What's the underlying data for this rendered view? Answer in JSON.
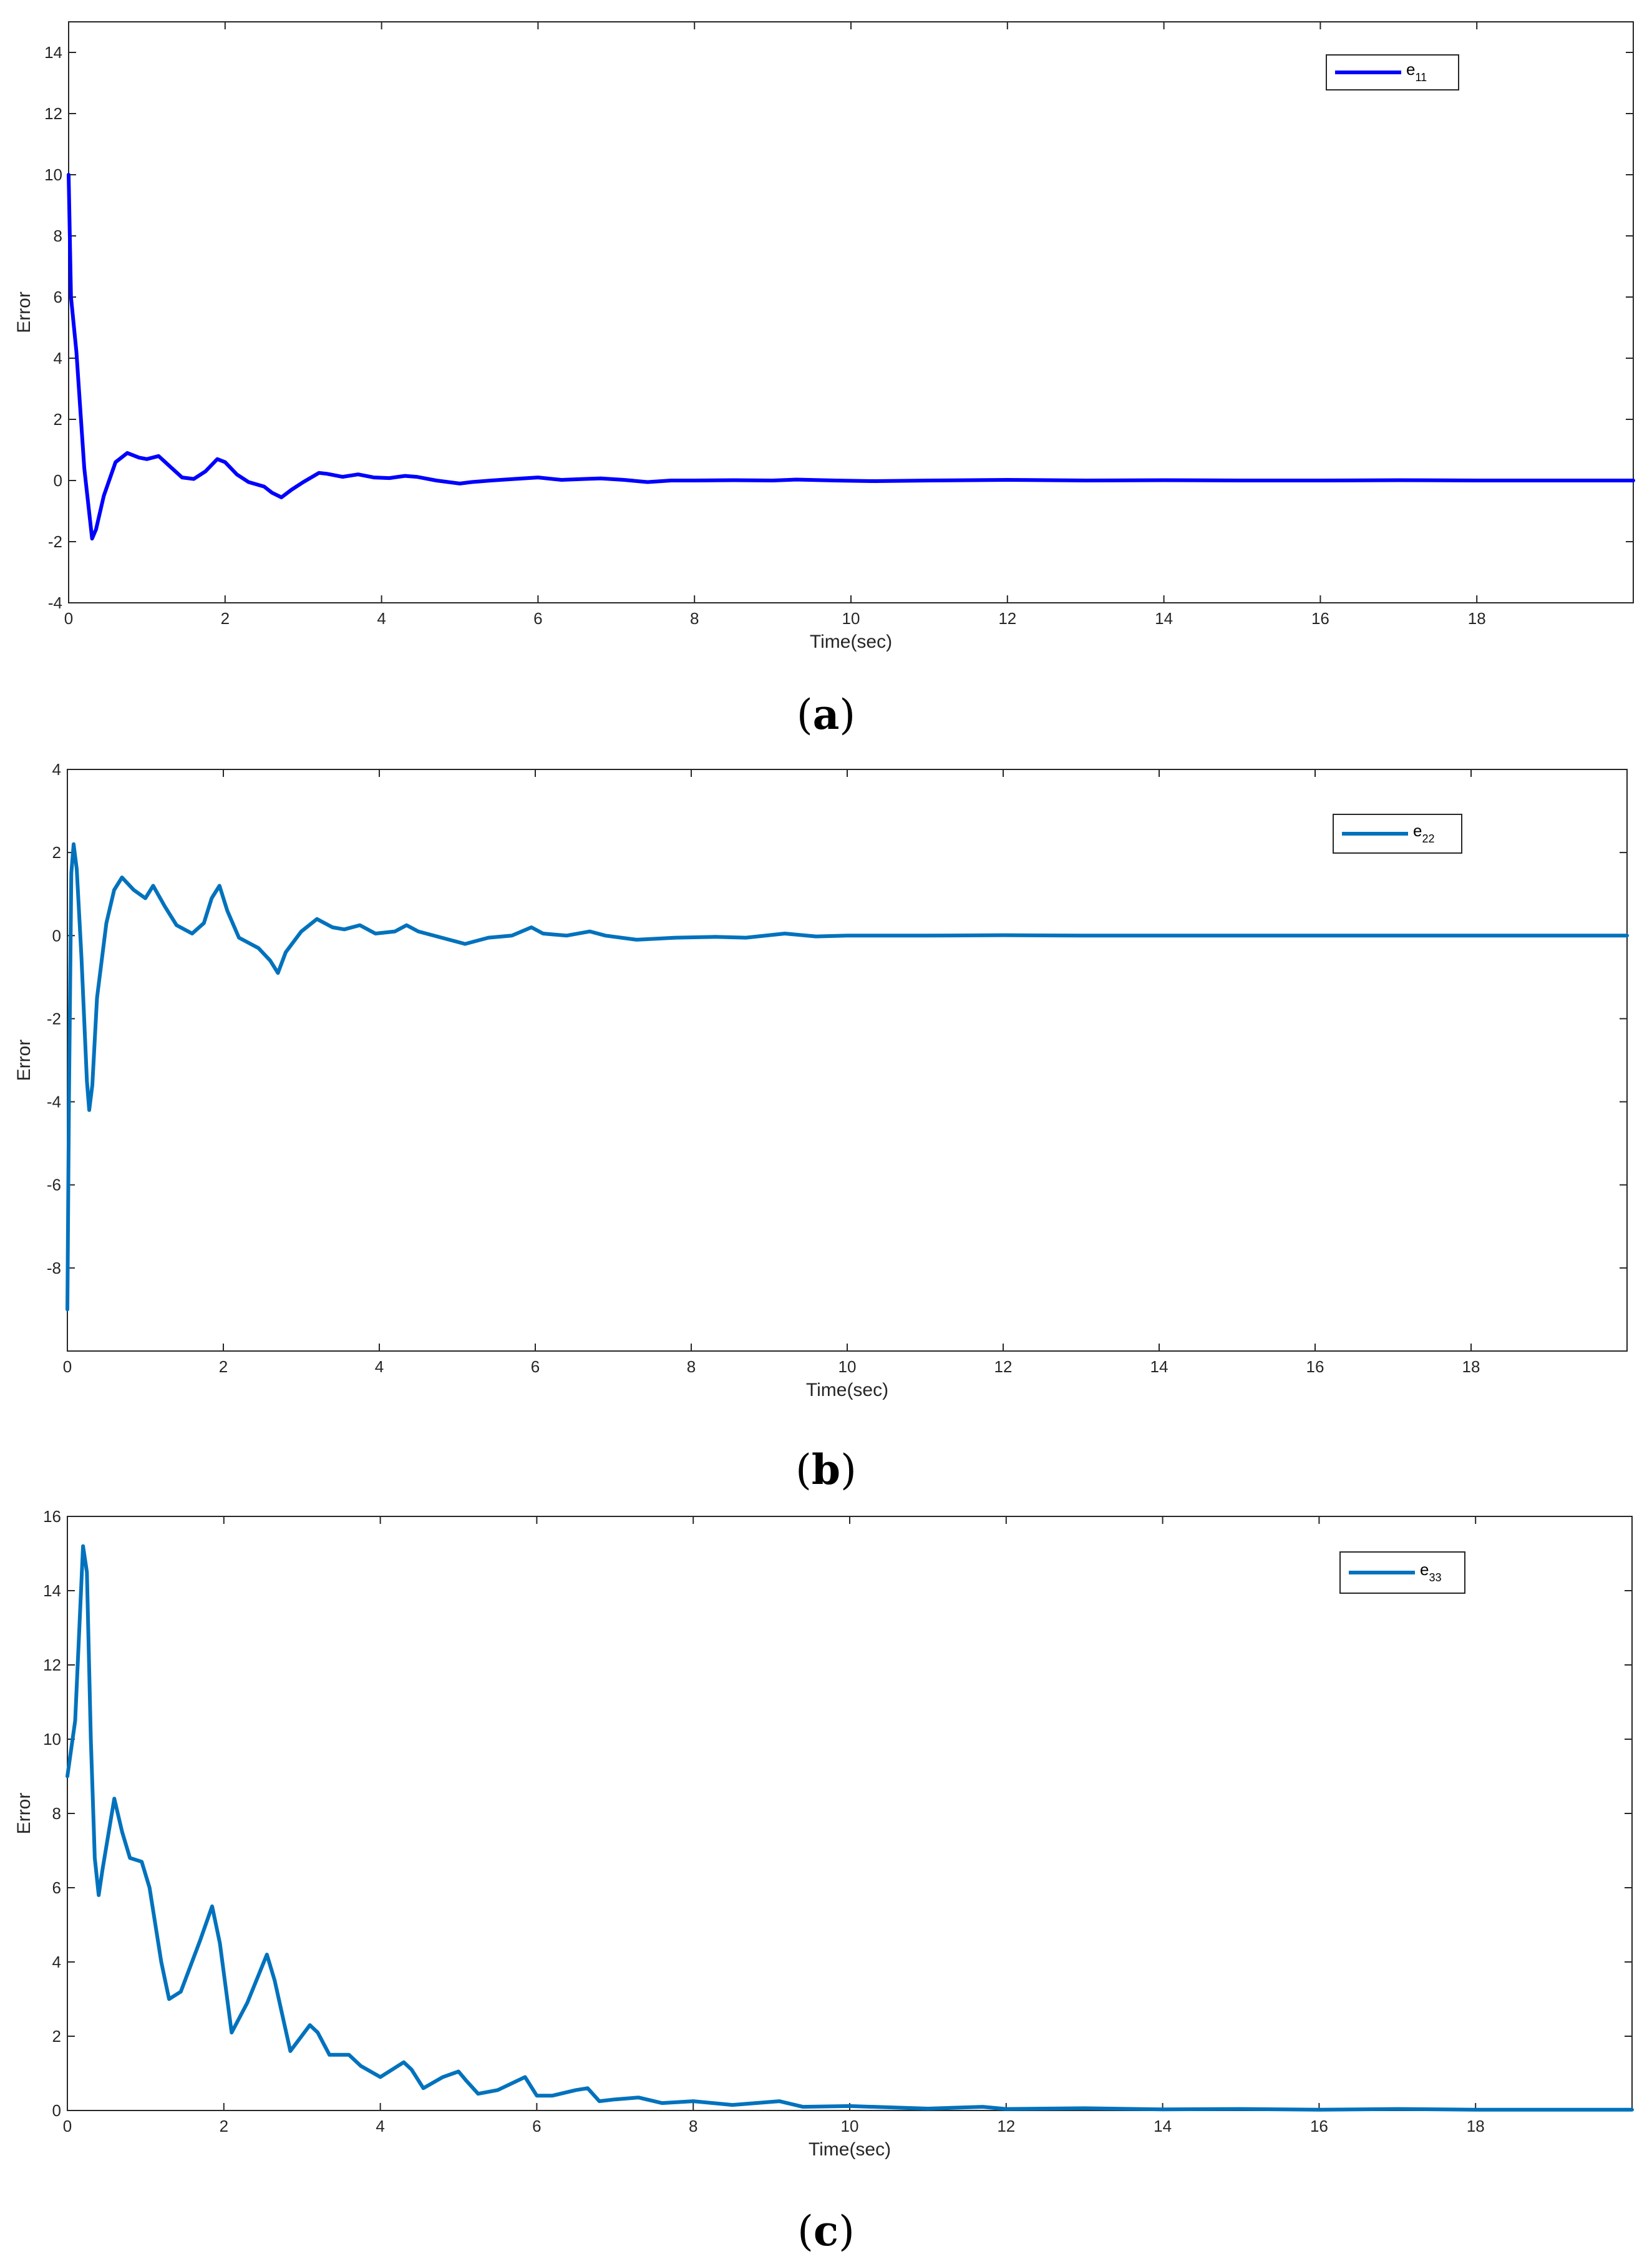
{
  "figure": {
    "captions": [
      {
        "open": "(",
        "letter": "a",
        "close": ")"
      },
      {
        "open": "(",
        "letter": "b",
        "close": ")"
      },
      {
        "open": "(",
        "letter": "c",
        "close": ")"
      }
    ]
  },
  "chart_data": [
    {
      "type": "line",
      "xlabel": "Time(sec)",
      "ylabel": "Error",
      "xlim": [
        0,
        20
      ],
      "ylim": [
        -4,
        15
      ],
      "xticks": [
        0,
        2,
        4,
        6,
        8,
        10,
        12,
        14,
        16,
        18
      ],
      "yticks": [
        -4,
        -2,
        0,
        2,
        4,
        6,
        8,
        10,
        12,
        14
      ],
      "grid": false,
      "legend_position": "top-right",
      "series": [
        {
          "name": "e11",
          "name_base": "e",
          "name_subscript": "11",
          "color": "#0000ff",
          "x": [
            0,
            0.03,
            0.1,
            0.2,
            0.3,
            0.35,
            0.45,
            0.6,
            0.75,
            0.9,
            1.0,
            1.15,
            1.3,
            1.45,
            1.6,
            1.75,
            1.9,
            2.0,
            2.15,
            2.3,
            2.5,
            2.6,
            2.72,
            2.85,
            3.0,
            3.2,
            3.3,
            3.5,
            3.7,
            3.9,
            4.1,
            4.3,
            4.45,
            4.7,
            5.0,
            5.15,
            5.4,
            5.7,
            6.0,
            6.3,
            6.6,
            6.8,
            7.1,
            7.4,
            7.7,
            8.0,
            8.5,
            9.0,
            9.3,
            9.8,
            10.3,
            11.0,
            12.0,
            13.0,
            14.0,
            15.0,
            16.0,
            17.0,
            18.0,
            19.0,
            20.0
          ],
          "y": [
            10.0,
            6.0,
            4.2,
            0.4,
            -1.9,
            -1.6,
            -0.5,
            0.6,
            0.9,
            0.75,
            0.7,
            0.8,
            0.45,
            0.1,
            0.05,
            0.3,
            0.7,
            0.6,
            0.2,
            -0.05,
            -0.2,
            -0.4,
            -0.55,
            -0.3,
            -0.05,
            0.25,
            0.22,
            0.12,
            0.2,
            0.1,
            0.08,
            0.15,
            0.12,
            0.0,
            -0.1,
            -0.05,
            0.0,
            0.05,
            0.1,
            0.02,
            0.05,
            0.07,
            0.02,
            -0.05,
            0.0,
            0.0,
            0.01,
            0.0,
            0.03,
            0.0,
            -0.02,
            0.0,
            0.02,
            0.0,
            0.01,
            0.0,
            0.0,
            0.01,
            0.0,
            0.0,
            0.0
          ]
        }
      ]
    },
    {
      "type": "line",
      "xlabel": "Time(sec)",
      "ylabel": "Error",
      "xlim": [
        0,
        20
      ],
      "ylim": [
        -10,
        4
      ],
      "xticks": [
        0,
        2,
        4,
        6,
        8,
        10,
        12,
        14,
        16,
        18
      ],
      "yticks": [
        -8,
        -6,
        -4,
        -2,
        0,
        2,
        4
      ],
      "grid": false,
      "legend_position": "top-right",
      "series": [
        {
          "name": "e22",
          "name_base": "e",
          "name_subscript": "22",
          "color": "#0072bd",
          "x": [
            0,
            0.02,
            0.05,
            0.08,
            0.12,
            0.18,
            0.25,
            0.28,
            0.32,
            0.38,
            0.5,
            0.6,
            0.7,
            0.85,
            1.0,
            1.1,
            1.25,
            1.4,
            1.6,
            1.75,
            1.85,
            1.95,
            2.05,
            2.2,
            2.45,
            2.6,
            2.7,
            2.8,
            3.0,
            3.2,
            3.4,
            3.55,
            3.75,
            3.95,
            4.2,
            4.35,
            4.5,
            4.8,
            5.1,
            5.4,
            5.7,
            5.95,
            6.1,
            6.4,
            6.7,
            6.9,
            7.3,
            7.8,
            8.3,
            8.7,
            9.2,
            9.6,
            10.0,
            11.0,
            12.0,
            13.0,
            14.0,
            15.0,
            16.0,
            17.0,
            18.0,
            19.0,
            20.0
          ],
          "y": [
            -9.0,
            -4.0,
            1.5,
            2.2,
            1.6,
            -0.5,
            -3.5,
            -4.2,
            -3.6,
            -1.5,
            0.3,
            1.1,
            1.4,
            1.1,
            0.9,
            1.2,
            0.7,
            0.25,
            0.05,
            0.3,
            0.9,
            1.2,
            0.6,
            -0.05,
            -0.3,
            -0.6,
            -0.9,
            -0.4,
            0.1,
            0.4,
            0.2,
            0.15,
            0.25,
            0.05,
            0.1,
            0.25,
            0.1,
            -0.05,
            -0.2,
            -0.05,
            0.0,
            0.2,
            0.05,
            0.0,
            0.1,
            0.0,
            -0.1,
            -0.05,
            -0.03,
            -0.05,
            0.05,
            -0.02,
            0.0,
            0.0,
            0.01,
            0.0,
            0.0,
            0.0,
            0.0,
            0.0,
            0.0,
            0.0,
            0.0
          ]
        }
      ]
    },
    {
      "type": "line",
      "xlabel": "Time(sec)",
      "ylabel": "Error",
      "xlim": [
        0,
        20
      ],
      "ylim": [
        0,
        16
      ],
      "xticks": [
        0,
        2,
        4,
        6,
        8,
        10,
        12,
        14,
        16,
        18
      ],
      "yticks": [
        0,
        2,
        4,
        6,
        8,
        10,
        12,
        14,
        16
      ],
      "grid": false,
      "legend_position": "top-right",
      "series": [
        {
          "name": "e33",
          "name_base": "e",
          "name_subscript": "33",
          "color": "#0072bd",
          "x": [
            0,
            0.1,
            0.2,
            0.25,
            0.3,
            0.35,
            0.4,
            0.45,
            0.6,
            0.7,
            0.8,
            0.95,
            1.05,
            1.2,
            1.3,
            1.45,
            1.7,
            1.85,
            1.95,
            2.1,
            2.3,
            2.55,
            2.65,
            2.85,
            3.1,
            3.2,
            3.35,
            3.6,
            3.75,
            4.0,
            4.3,
            4.4,
            4.55,
            4.8,
            5.0,
            5.1,
            5.25,
            5.5,
            5.85,
            6.0,
            6.2,
            6.5,
            6.65,
            6.8,
            7.0,
            7.3,
            7.6,
            8.0,
            8.5,
            9.1,
            9.4,
            10.0,
            11.0,
            11.7,
            12.0,
            13.0,
            14.0,
            15.0,
            16.0,
            17.0,
            18.0,
            19.0,
            20.0
          ],
          "y": [
            9.0,
            10.5,
            15.2,
            14.5,
            10.0,
            6.8,
            5.8,
            6.5,
            8.4,
            7.5,
            6.8,
            6.7,
            6.0,
            4.0,
            3.0,
            3.2,
            4.6,
            5.5,
            4.5,
            2.1,
            2.9,
            4.2,
            3.5,
            1.6,
            2.3,
            2.1,
            1.5,
            1.5,
            1.2,
            0.9,
            1.3,
            1.1,
            0.6,
            0.9,
            1.05,
            0.8,
            0.45,
            0.55,
            0.9,
            0.4,
            0.4,
            0.55,
            0.6,
            0.25,
            0.3,
            0.35,
            0.2,
            0.25,
            0.15,
            0.25,
            0.1,
            0.12,
            0.05,
            0.1,
            0.04,
            0.06,
            0.03,
            0.04,
            0.02,
            0.04,
            0.02,
            0.02,
            0.02
          ]
        }
      ]
    }
  ]
}
